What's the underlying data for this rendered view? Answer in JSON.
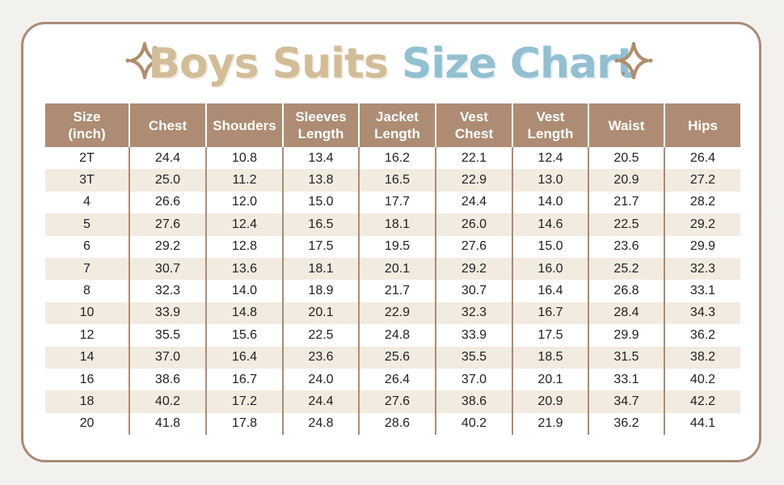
{
  "title": {
    "part1": "Boys Suits",
    "part2": "Size Chart"
  },
  "colors": {
    "header": "#ad8c73",
    "border": "#a98b77",
    "title_beige": "#d2bd98",
    "title_blue": "#93c0d1",
    "stripe": "#f2ebe0"
  },
  "icons": {
    "left": "sparkle-icon",
    "right": "sparkle-icon"
  },
  "chart_data": {
    "type": "table",
    "columns": [
      [
        "Size",
        "(inch)"
      ],
      [
        "Chest"
      ],
      [
        "Shouders"
      ],
      [
        "Sleeves",
        "Length"
      ],
      [
        "Jacket",
        "Length"
      ],
      [
        "Vest",
        "Chest"
      ],
      [
        "Vest",
        "Length"
      ],
      [
        "Waist"
      ],
      [
        "Hips"
      ]
    ],
    "rows": [
      [
        "2T",
        "24.4",
        "10.8",
        "13.4",
        "16.2",
        "22.1",
        "12.4",
        "20.5",
        "26.4"
      ],
      [
        "3T",
        "25.0",
        "11.2",
        "13.8",
        "16.5",
        "22.9",
        "13.0",
        "20.9",
        "27.2"
      ],
      [
        "4",
        "26.6",
        "12.0",
        "15.0",
        "17.7",
        "24.4",
        "14.0",
        "21.7",
        "28.2"
      ],
      [
        "5",
        "27.6",
        "12.4",
        "16.5",
        "18.1",
        "26.0",
        "14.6",
        "22.5",
        "29.2"
      ],
      [
        "6",
        "29.2",
        "12.8",
        "17.5",
        "19.5",
        "27.6",
        "15.0",
        "23.6",
        "29.9"
      ],
      [
        "7",
        "30.7",
        "13.6",
        "18.1",
        "20.1",
        "29.2",
        "16.0",
        "25.2",
        "32.3"
      ],
      [
        "8",
        "32.3",
        "14.0",
        "18.9",
        "21.7",
        "30.7",
        "16.4",
        "26.8",
        "33.1"
      ],
      [
        "10",
        "33.9",
        "14.8",
        "20.1",
        "22.9",
        "32.3",
        "16.7",
        "28.4",
        "34.3"
      ],
      [
        "12",
        "35.5",
        "15.6",
        "22.5",
        "24.8",
        "33.9",
        "17.5",
        "29.9",
        "36.2"
      ],
      [
        "14",
        "37.0",
        "16.4",
        "23.6",
        "25.6",
        "35.5",
        "18.5",
        "31.5",
        "38.2"
      ],
      [
        "16",
        "38.6",
        "16.7",
        "24.0",
        "26.4",
        "37.0",
        "20.1",
        "33.1",
        "40.2"
      ],
      [
        "18",
        "40.2",
        "17.2",
        "24.4",
        "27.6",
        "38.6",
        "20.9",
        "34.7",
        "42.2"
      ],
      [
        "20",
        "41.8",
        "17.8",
        "24.8",
        "28.6",
        "40.2",
        "21.9",
        "36.2",
        "44.1"
      ]
    ]
  }
}
